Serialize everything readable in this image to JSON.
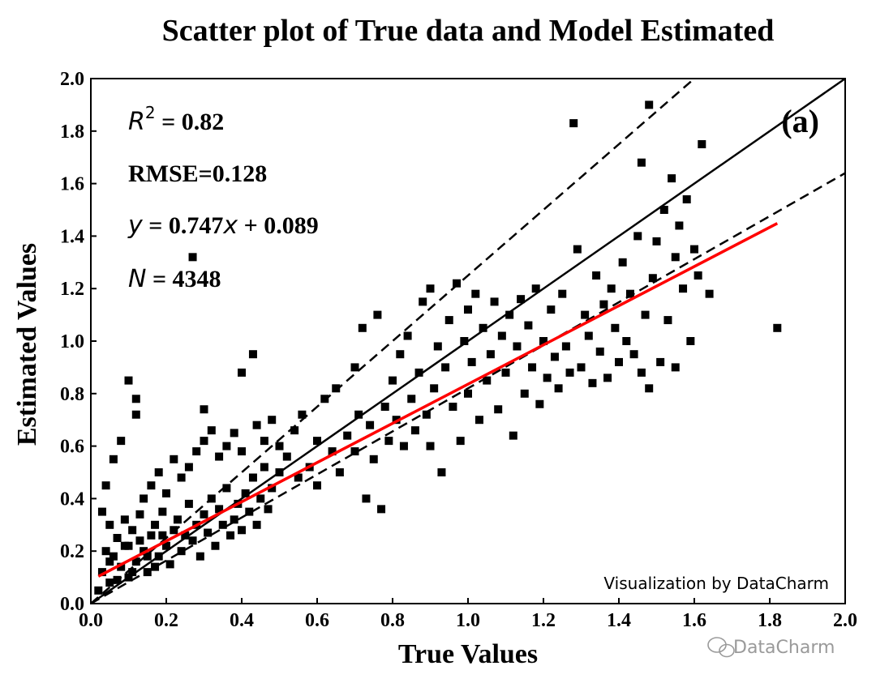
{
  "chart_data": {
    "type": "scatter",
    "title": "Scatter plot of True data and Model Estimated",
    "xlabel": "True Values",
    "ylabel": "Estimated Values",
    "xlim": [
      0.0,
      2.0
    ],
    "ylim": [
      0.0,
      2.0
    ],
    "xticks": [
      "0.0",
      "0.2",
      "0.4",
      "0.6",
      "0.8",
      "1.0",
      "1.2",
      "1.4",
      "1.6",
      "1.8",
      "2.0"
    ],
    "yticks": [
      "0.0",
      "0.2",
      "0.4",
      "0.6",
      "0.8",
      "1.0",
      "1.2",
      "1.4",
      "1.6",
      "1.8",
      "2.0"
    ],
    "panel_label": "(a)",
    "stats": {
      "r2_label": "R",
      "r2_sup": "2",
      "r2_value": " = 0.82",
      "rmse": "RMSE=0.128",
      "fit_y": "y",
      "fit_mid": " = 0.747",
      "fit_x": "x",
      "fit_end": " + 0.089",
      "n_label": "N",
      "n_value": " = 4348"
    },
    "reference_lines": {
      "one_to_one": {
        "slope": 1.0,
        "intercept": 0.0,
        "style": "solid",
        "color": "#000000"
      },
      "upper_bound": {
        "slope": 1.25,
        "intercept": 0.0,
        "style": "dashed",
        "color": "#000000"
      },
      "lower_bound": {
        "slope": 0.82,
        "intercept": 0.0,
        "style": "dashed",
        "color": "#000000"
      }
    },
    "fit_line": {
      "slope": 0.747,
      "intercept": 0.089,
      "x_range": [
        0.02,
        1.82
      ],
      "color": "#ff0000"
    },
    "points": [
      [
        0.02,
        0.05
      ],
      [
        0.03,
        0.12
      ],
      [
        0.04,
        0.2
      ],
      [
        0.05,
        0.3
      ],
      [
        0.05,
        0.08
      ],
      [
        0.06,
        0.18
      ],
      [
        0.07,
        0.25
      ],
      [
        0.08,
        0.14
      ],
      [
        0.09,
        0.32
      ],
      [
        0.1,
        0.1
      ],
      [
        0.1,
        0.22
      ],
      [
        0.11,
        0.28
      ],
      [
        0.12,
        0.16
      ],
      [
        0.13,
        0.34
      ],
      [
        0.14,
        0.2
      ],
      [
        0.15,
        0.12
      ],
      [
        0.16,
        0.26
      ],
      [
        0.17,
        0.3
      ],
      [
        0.18,
        0.18
      ],
      [
        0.19,
        0.35
      ],
      [
        0.2,
        0.22
      ],
      [
        0.21,
        0.15
      ],
      [
        0.22,
        0.28
      ],
      [
        0.23,
        0.32
      ],
      [
        0.24,
        0.2
      ],
      [
        0.25,
        0.26
      ],
      [
        0.26,
        0.38
      ],
      [
        0.27,
        0.24
      ],
      [
        0.28,
        0.3
      ],
      [
        0.29,
        0.18
      ],
      [
        0.3,
        0.34
      ],
      [
        0.31,
        0.27
      ],
      [
        0.32,
        0.4
      ],
      [
        0.33,
        0.22
      ],
      [
        0.34,
        0.36
      ],
      [
        0.35,
        0.3
      ],
      [
        0.36,
        0.44
      ],
      [
        0.37,
        0.26
      ],
      [
        0.38,
        0.32
      ],
      [
        0.39,
        0.38
      ],
      [
        0.4,
        0.28
      ],
      [
        0.41,
        0.42
      ],
      [
        0.42,
        0.35
      ],
      [
        0.43,
        0.48
      ],
      [
        0.44,
        0.3
      ],
      [
        0.45,
        0.4
      ],
      [
        0.46,
        0.52
      ],
      [
        0.47,
        0.36
      ],
      [
        0.48,
        0.44
      ],
      [
        0.5,
        0.5
      ],
      [
        0.03,
        0.35
      ],
      [
        0.04,
        0.45
      ],
      [
        0.06,
        0.55
      ],
      [
        0.08,
        0.62
      ],
      [
        0.1,
        0.85
      ],
      [
        0.12,
        0.72
      ],
      [
        0.12,
        0.78
      ],
      [
        0.14,
        0.4
      ],
      [
        0.16,
        0.45
      ],
      [
        0.18,
        0.5
      ],
      [
        0.2,
        0.42
      ],
      [
        0.22,
        0.55
      ],
      [
        0.24,
        0.48
      ],
      [
        0.26,
        0.52
      ],
      [
        0.27,
        1.32
      ],
      [
        0.28,
        0.58
      ],
      [
        0.3,
        0.62
      ],
      [
        0.3,
        0.74
      ],
      [
        0.32,
        0.66
      ],
      [
        0.34,
        0.56
      ],
      [
        0.36,
        0.6
      ],
      [
        0.38,
        0.65
      ],
      [
        0.4,
        0.58
      ],
      [
        0.4,
        0.88
      ],
      [
        0.43,
        0.95
      ],
      [
        0.44,
        0.68
      ],
      [
        0.46,
        0.62
      ],
      [
        0.48,
        0.7
      ],
      [
        0.5,
        0.6
      ],
      [
        0.52,
        0.56
      ],
      [
        0.54,
        0.66
      ],
      [
        0.55,
        0.48
      ],
      [
        0.56,
        0.72
      ],
      [
        0.58,
        0.52
      ],
      [
        0.6,
        0.62
      ],
      [
        0.6,
        0.45
      ],
      [
        0.62,
        0.78
      ],
      [
        0.64,
        0.58
      ],
      [
        0.65,
        0.82
      ],
      [
        0.66,
        0.5
      ],
      [
        0.68,
        0.64
      ],
      [
        0.7,
        0.58
      ],
      [
        0.7,
        0.9
      ],
      [
        0.71,
        0.72
      ],
      [
        0.72,
        1.05
      ],
      [
        0.73,
        0.4
      ],
      [
        0.74,
        0.68
      ],
      [
        0.75,
        0.55
      ],
      [
        0.76,
        1.1
      ],
      [
        0.77,
        0.36
      ],
      [
        0.78,
        0.75
      ],
      [
        0.79,
        0.62
      ],
      [
        0.8,
        0.85
      ],
      [
        0.81,
        0.7
      ],
      [
        0.82,
        0.95
      ],
      [
        0.83,
        0.6
      ],
      [
        0.84,
        1.02
      ],
      [
        0.85,
        0.78
      ],
      [
        0.86,
        0.66
      ],
      [
        0.87,
        0.88
      ],
      [
        0.88,
        1.15
      ],
      [
        0.89,
        0.72
      ],
      [
        0.9,
        0.6
      ],
      [
        0.9,
        1.2
      ],
      [
        0.91,
        0.82
      ],
      [
        0.92,
        0.98
      ],
      [
        0.93,
        0.5
      ],
      [
        0.94,
        0.9
      ],
      [
        0.95,
        1.08
      ],
      [
        0.96,
        0.75
      ],
      [
        0.97,
        1.22
      ],
      [
        0.98,
        0.62
      ],
      [
        0.99,
        1.0
      ],
      [
        1.0,
        0.8
      ],
      [
        1.0,
        1.12
      ],
      [
        1.01,
        0.92
      ],
      [
        1.02,
        1.18
      ],
      [
        1.03,
        0.7
      ],
      [
        1.04,
        1.05
      ],
      [
        1.05,
        0.85
      ],
      [
        1.06,
        0.95
      ],
      [
        1.07,
        1.15
      ],
      [
        1.08,
        0.74
      ],
      [
        1.09,
        1.02
      ],
      [
        1.1,
        0.88
      ],
      [
        1.11,
        1.1
      ],
      [
        1.12,
        0.64
      ],
      [
        1.13,
        0.98
      ],
      [
        1.14,
        1.16
      ],
      [
        1.15,
        0.8
      ],
      [
        1.16,
        1.06
      ],
      [
        1.17,
        0.9
      ],
      [
        1.18,
        1.2
      ],
      [
        1.19,
        0.76
      ],
      [
        1.2,
        1.0
      ],
      [
        1.21,
        0.86
      ],
      [
        1.22,
        1.12
      ],
      [
        1.23,
        0.94
      ],
      [
        1.24,
        0.82
      ],
      [
        1.25,
        1.18
      ],
      [
        1.26,
        0.98
      ],
      [
        1.27,
        0.88
      ],
      [
        1.28,
        1.83
      ],
      [
        1.29,
        1.35
      ],
      [
        1.3,
        0.9
      ],
      [
        1.31,
        1.1
      ],
      [
        1.32,
        1.02
      ],
      [
        1.33,
        0.84
      ],
      [
        1.34,
        1.25
      ],
      [
        1.35,
        0.96
      ],
      [
        1.36,
        1.14
      ],
      [
        1.37,
        0.86
      ],
      [
        1.38,
        1.2
      ],
      [
        1.39,
        1.05
      ],
      [
        1.4,
        0.92
      ],
      [
        1.41,
        1.3
      ],
      [
        1.42,
        1.0
      ],
      [
        1.43,
        1.18
      ],
      [
        1.44,
        0.95
      ],
      [
        1.45,
        1.4
      ],
      [
        1.46,
        0.88
      ],
      [
        1.46,
        1.68
      ],
      [
        1.47,
        1.1
      ],
      [
        1.48,
        1.9
      ],
      [
        1.48,
        0.82
      ],
      [
        1.49,
        1.24
      ],
      [
        1.5,
        1.38
      ],
      [
        1.51,
        0.92
      ],
      [
        1.52,
        1.5
      ],
      [
        1.53,
        1.08
      ],
      [
        1.54,
        1.62
      ],
      [
        1.55,
        1.32
      ],
      [
        1.55,
        0.9
      ],
      [
        1.56,
        1.44
      ],
      [
        1.57,
        1.2
      ],
      [
        1.58,
        1.54
      ],
      [
        1.59,
        1.0
      ],
      [
        1.6,
        1.35
      ],
      [
        1.61,
        1.25
      ],
      [
        1.62,
        1.75
      ],
      [
        1.64,
        1.18
      ],
      [
        1.82,
        1.05
      ],
      [
        0.05,
        0.16
      ],
      [
        0.07,
        0.09
      ],
      [
        0.09,
        0.22
      ],
      [
        0.11,
        0.12
      ],
      [
        0.13,
        0.24
      ],
      [
        0.15,
        0.18
      ],
      [
        0.17,
        0.14
      ],
      [
        0.19,
        0.26
      ]
    ]
  },
  "watermark": {
    "credit": "Visualization by DataCharm",
    "brand": "DataCharm"
  }
}
